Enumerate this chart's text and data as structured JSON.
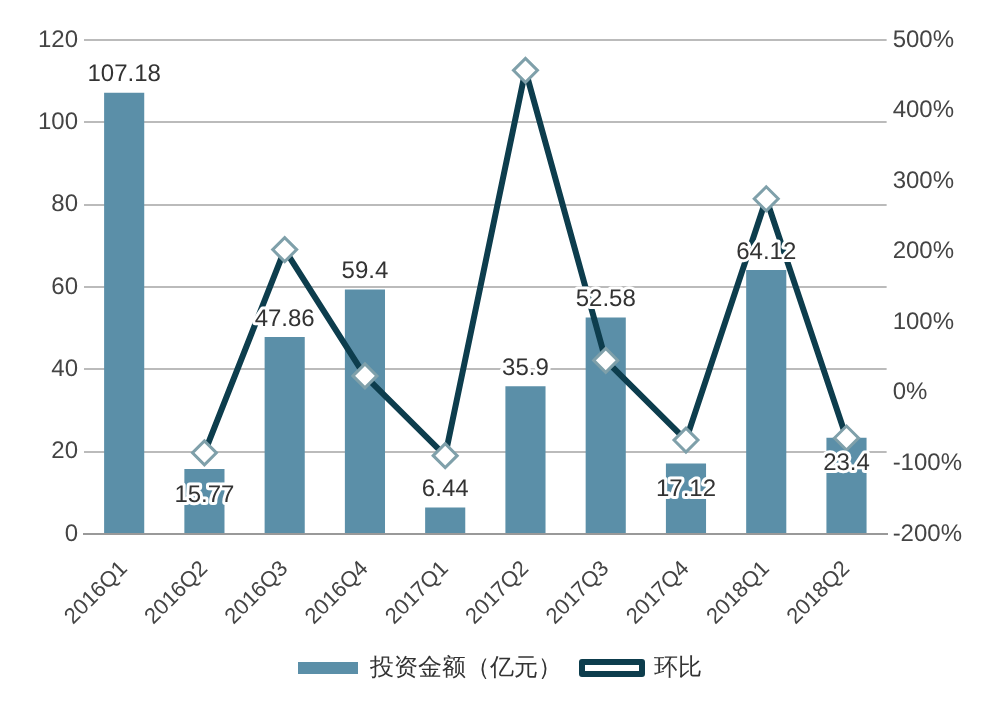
{
  "chart_data": {
    "type": "bar",
    "categories": [
      "2016Q1",
      "2016Q2",
      "2016Q3",
      "2016Q4",
      "2017Q1",
      "2017Q2",
      "2017Q3",
      "2017Q4",
      "2018Q1",
      "2018Q2"
    ],
    "series": [
      {
        "name": "投资金额（亿元）",
        "color": "#5b8fa8",
        "values": [
          107.18,
          15.77,
          47.86,
          59.4,
          6.44,
          35.9,
          52.58,
          17.12,
          64.12,
          23.4
        ],
        "value_labels": [
          "107.18",
          "15.77",
          "47.86",
          "59.4",
          "6.44",
          "35.9",
          "52.58",
          "17.12",
          "64.12",
          "23.4"
        ]
      },
      {
        "name": "环比",
        "type": "line",
        "axis": "y2",
        "color": "#0d3d4d",
        "marker": "diamond",
        "values": [
          null,
          -85,
          203,
          24,
          -89,
          457,
          46,
          -67,
          275,
          -64
        ]
      }
    ],
    "ylim": [
      0,
      120
    ],
    "yticks": [
      0,
      20,
      40,
      60,
      80,
      100,
      120
    ],
    "y2lim": [
      -200,
      500
    ],
    "y2ticks": [
      {
        "value": -200,
        "label": "-200%"
      },
      {
        "value": -100,
        "label": "-100%"
      },
      {
        "value": 0,
        "label": "0%"
      },
      {
        "value": 100,
        "label": "100%"
      },
      {
        "value": 200,
        "label": "200%"
      },
      {
        "value": 300,
        "label": "300%"
      },
      {
        "value": 400,
        "label": "400%"
      },
      {
        "value": 500,
        "label": "500%"
      }
    ],
    "grid": "y",
    "legend": "bottom"
  }
}
